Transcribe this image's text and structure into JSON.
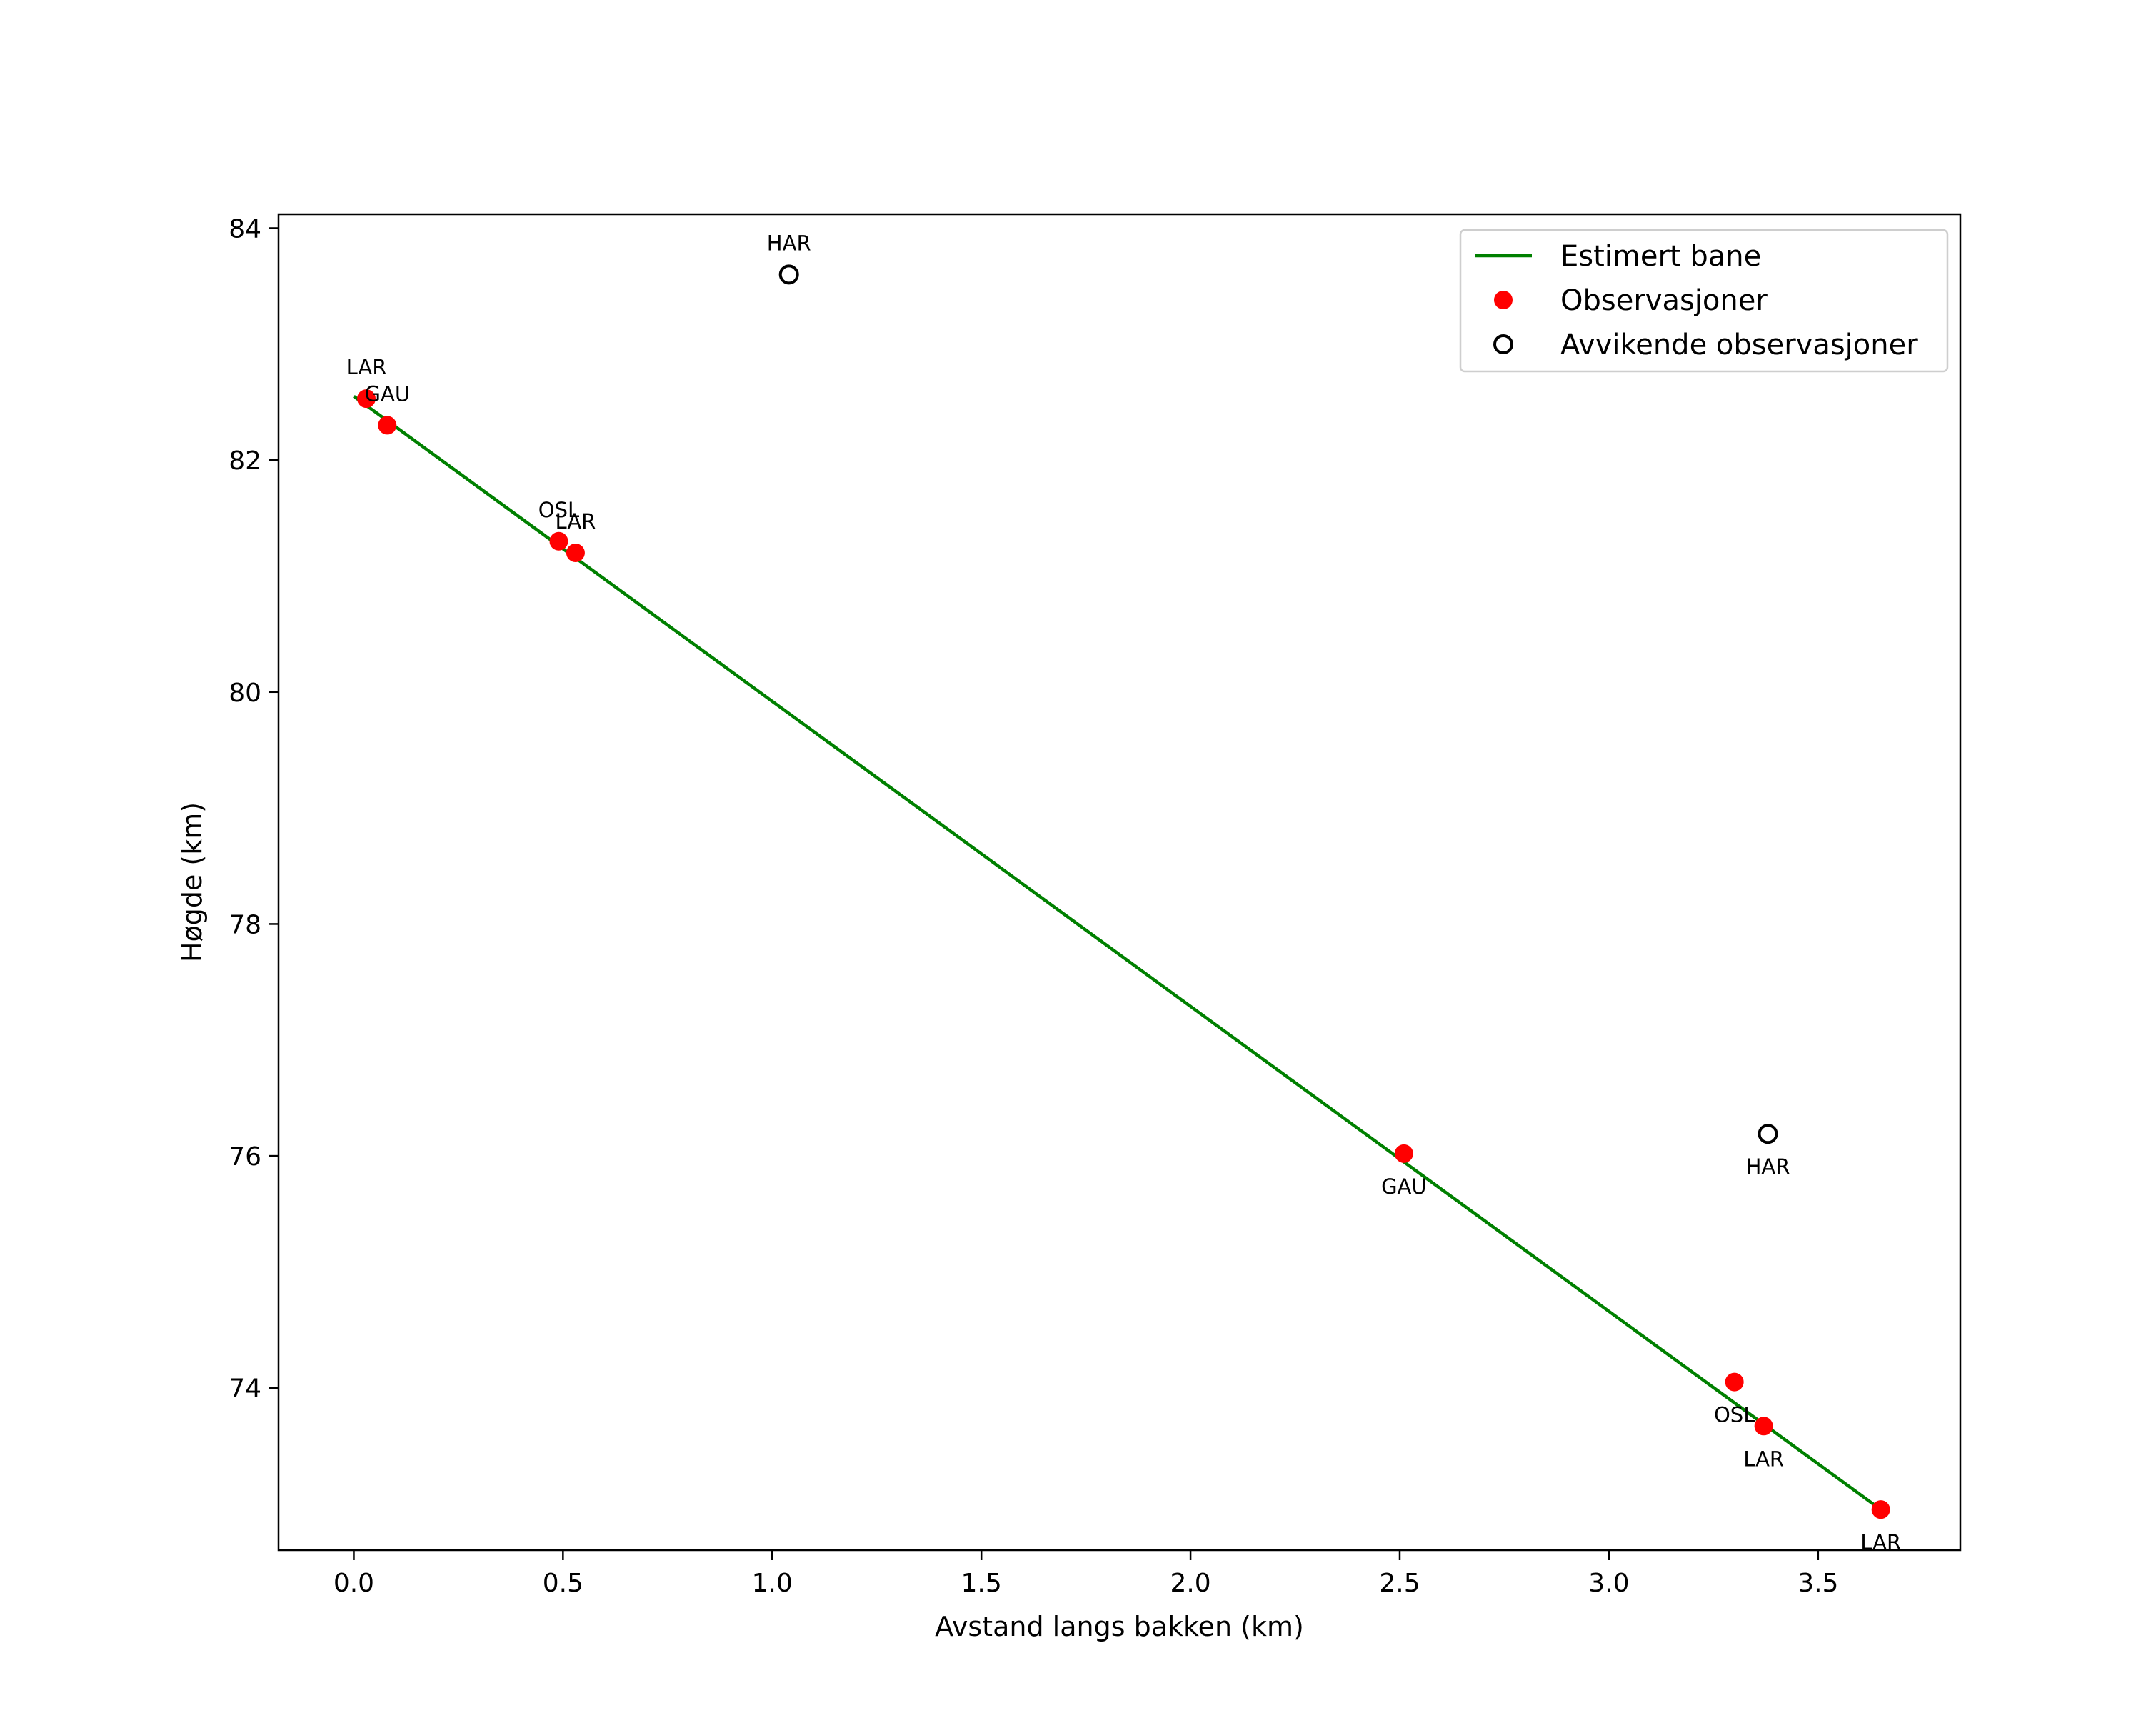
{
  "chart_data": {
    "type": "scatter",
    "xlabel": "Avstand langs bakken (km)",
    "ylabel": "Høgde (km)",
    "xlim": [
      -0.18,
      3.84
    ],
    "ylim": [
      72.6,
      84.12
    ],
    "x_ticks": [
      0.0,
      0.5,
      1.0,
      1.5,
      2.0,
      2.5,
      3.0,
      3.5
    ],
    "x_tick_labels": [
      "0.0",
      "0.5",
      "1.0",
      "1.5",
      "2.0",
      "2.5",
      "3.0",
      "3.5"
    ],
    "y_ticks": [
      74,
      76,
      78,
      80,
      82,
      84
    ],
    "y_tick_labels": [
      "74",
      "76",
      "78",
      "80",
      "82",
      "84"
    ],
    "grid": false,
    "legend_position": "top-right",
    "series": [
      {
        "name": "Estimert bane",
        "kind": "line",
        "color": "#008000",
        "x": [
          0.0,
          3.65
        ],
        "y": [
          82.55,
          72.95
        ]
      },
      {
        "name": "Observasjoner",
        "kind": "scatter",
        "marker": "filled-circle",
        "color": "#ff0000",
        "points": [
          {
            "x": 0.03,
            "y": 82.53,
            "label": "LAR",
            "label_position": "above"
          },
          {
            "x": 0.08,
            "y": 82.3,
            "label": "GAU",
            "label_position": "above"
          },
          {
            "x": 0.49,
            "y": 81.3,
            "label": "OSL",
            "label_position": "above"
          },
          {
            "x": 0.53,
            "y": 81.2,
            "label": "LAR",
            "label_position": "above"
          },
          {
            "x": 2.51,
            "y": 76.02,
            "label": "GAU",
            "label_position": "below"
          },
          {
            "x": 3.3,
            "y": 74.05,
            "label": "OSL",
            "label_position": "below"
          },
          {
            "x": 3.37,
            "y": 73.67,
            "label": "LAR",
            "label_position": "below"
          },
          {
            "x": 3.65,
            "y": 72.95,
            "label": "LAR",
            "label_position": "below"
          }
        ]
      },
      {
        "name": "Avvikende observasjoner",
        "kind": "scatter",
        "marker": "open-circle",
        "color": "#000000",
        "points": [
          {
            "x": 1.04,
            "y": 83.6,
            "label": "HAR",
            "label_position": "above"
          },
          {
            "x": 3.38,
            "y": 76.19,
            "label": "HAR",
            "label_position": "below"
          }
        ]
      }
    ]
  }
}
